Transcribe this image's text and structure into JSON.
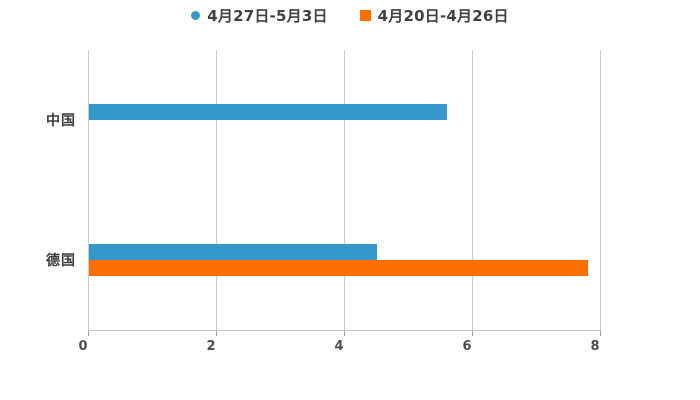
{
  "chart_data": {
    "type": "bar",
    "orientation": "horizontal",
    "title": "",
    "xlabel": "",
    "ylabel": "",
    "categories": [
      "中国",
      "德国"
    ],
    "series": [
      {
        "name": "4月27日-5月3日",
        "color": "#3498cb",
        "marker": "circle",
        "values": [
          5.6,
          4.5
        ]
      },
      {
        "name": "4月20日-4月26日",
        "color": "#ff6e00",
        "marker": "square",
        "values": [
          null,
          7.8
        ]
      }
    ],
    "xlim": [
      0,
      8
    ],
    "x_ticks": [
      "0",
      "2",
      "4",
      "6",
      "8"
    ],
    "grid": "vertical-only",
    "legend_position": "top-center",
    "colors": {
      "background": "#ffffff",
      "gridline": "#cccccc",
      "axis_line": "#c3c3c3",
      "tick_label": "#4d4d4d",
      "category_label": "#3b3b3b",
      "legend_text": "#404040"
    }
  }
}
